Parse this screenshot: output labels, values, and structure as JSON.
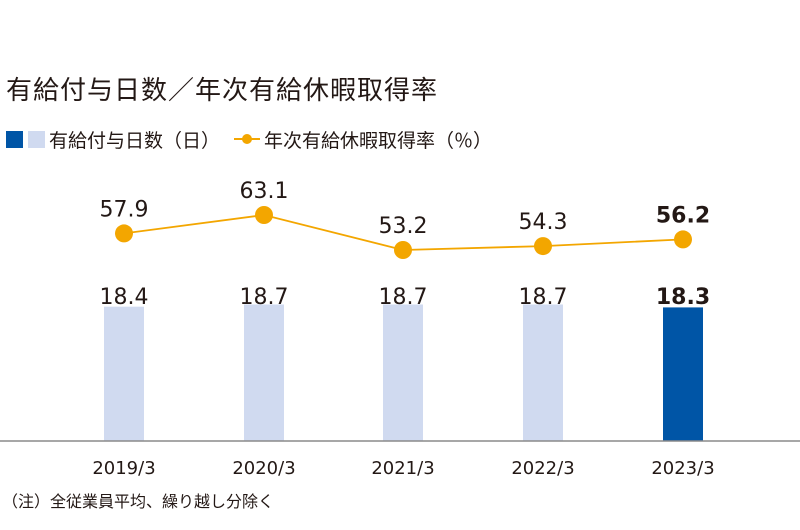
{
  "chart_data": {
    "type": "bar+line",
    "title": "有給付与日数／年次有給休暇取得率",
    "categories": [
      "2019/3",
      "2020/3",
      "2021/3",
      "2022/3",
      "2023/3"
    ],
    "series": [
      {
        "name": "有給付与日数（日）",
        "type": "bar",
        "values": [
          18.4,
          18.7,
          18.7,
          18.7,
          18.3
        ],
        "value_labels": [
          "18.4",
          "18.7",
          "18.7",
          "18.7",
          "18.3"
        ],
        "color": "#d0daf0",
        "highlight_color": "#0055a6"
      },
      {
        "name": "年次有給休暇取得率（％）",
        "type": "line",
        "values": [
          57.9,
          63.1,
          53.2,
          54.3,
          56.2
        ],
        "value_labels": [
          "57.9",
          "63.1",
          "53.2",
          "54.3",
          "56.2"
        ],
        "color": "#f3a600"
      }
    ],
    "highlight_category": "2023/3",
    "note": "（注）全従業員平均、繰り越し分除く",
    "legend_position": "top-left",
    "grid": false
  }
}
